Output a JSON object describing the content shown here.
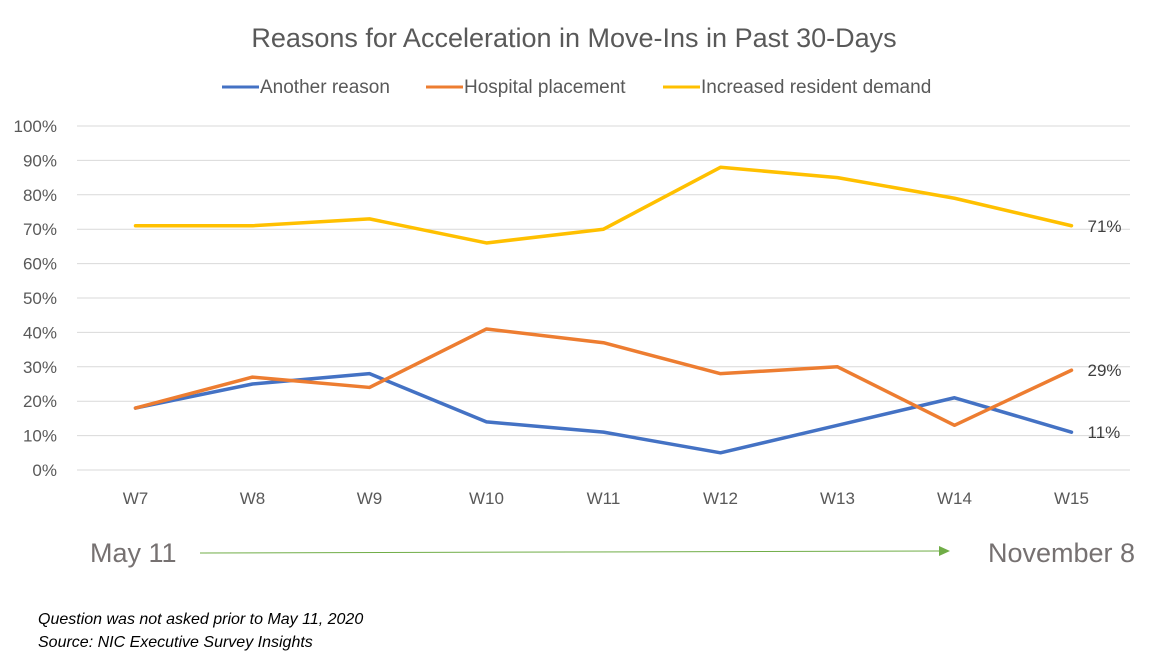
{
  "chart_data": {
    "type": "line",
    "title": "Reasons for Acceleration in Move-Ins in Past 30-Days",
    "categories": [
      "W7",
      "W8",
      "W9",
      "W10",
      "W11",
      "W12",
      "W13",
      "W14",
      "W15"
    ],
    "ylim": [
      0,
      100
    ],
    "yticks": [
      0,
      10,
      20,
      30,
      40,
      50,
      60,
      70,
      80,
      90,
      100
    ],
    "ytick_labels": [
      "0%",
      "10%",
      "20%",
      "30%",
      "40%",
      "50%",
      "60%",
      "70%",
      "80%",
      "90%",
      "100%"
    ],
    "grid": true,
    "legend_position": "top",
    "series": [
      {
        "name": "Another reason",
        "color": "#4472C4",
        "values": [
          18,
          25,
          28,
          14,
          11,
          5,
          13,
          21,
          11
        ],
        "end_label": "11%"
      },
      {
        "name": "Hospital placement",
        "color": "#ED7D31",
        "values": [
          18,
          27,
          24,
          41,
          37,
          28,
          30,
          13,
          29
        ],
        "end_label": "29%"
      },
      {
        "name": "Increased resident demand",
        "color": "#FFC000",
        "values": [
          71,
          71,
          73,
          66,
          70,
          88,
          85,
          79,
          71
        ],
        "end_label": "71%"
      }
    ]
  },
  "timeline": {
    "start_label": "May 11",
    "end_label": "November 8",
    "arrow_color": "#70AD47"
  },
  "footnotes": {
    "line1": "Question was not asked prior to May 11, 2020",
    "line2": "Source: NIC Executive Survey Insights"
  }
}
